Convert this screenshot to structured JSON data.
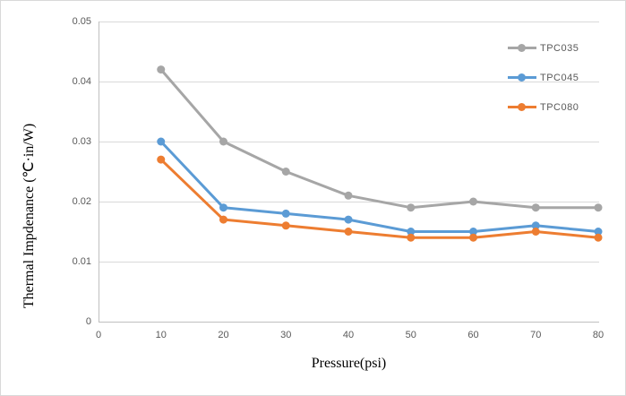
{
  "figure": {
    "background": "#FFFFFF",
    "border_color": "#D9D9D9"
  },
  "chart_data": {
    "type": "line",
    "title": "",
    "xlabel": "Pressure(psi)",
    "ylabel": "Thermal Impdenance (℃·in/W)",
    "x": [
      10,
      20,
      30,
      40,
      50,
      60,
      70,
      80
    ],
    "xlim": [
      0,
      80
    ],
    "ylim": [
      0,
      0.05
    ],
    "x_ticks": [
      0,
      10,
      20,
      30,
      40,
      50,
      60,
      70,
      80
    ],
    "x_tick_labels": [
      "0",
      "10",
      "20",
      "30",
      "40",
      "50",
      "60",
      "70",
      "80"
    ],
    "y_ticks": [
      0,
      0.01,
      0.02,
      0.03,
      0.04,
      0.05
    ],
    "y_tick_labels": [
      "0",
      "0.01",
      "0.02",
      "0.03",
      "0.04",
      "0.05"
    ],
    "grid": "horizontal-only",
    "legend_position": "upper-right-inside",
    "series": [
      {
        "name": "TPC035",
        "color": "#A6A6A6",
        "values": [
          0.042,
          0.03,
          0.025,
          0.021,
          0.019,
          0.02,
          0.019,
          0.019
        ]
      },
      {
        "name": "TPC045",
        "color": "#5B9BD5",
        "values": [
          0.03,
          0.019,
          0.018,
          0.017,
          0.015,
          0.015,
          0.016,
          0.015
        ]
      },
      {
        "name": "TPC080",
        "color": "#ED7D31",
        "values": [
          0.027,
          0.017,
          0.016,
          0.015,
          0.014,
          0.014,
          0.015,
          0.014
        ]
      }
    ],
    "style": {
      "gridline_color": "#D9D9D9",
      "axis_line_color": "#BFBFBF",
      "tick_label_color": "#595959",
      "legend_label_color": "#595959",
      "axis_title_color": "#000000",
      "line_width": 3,
      "marker_diameter": 9
    }
  }
}
